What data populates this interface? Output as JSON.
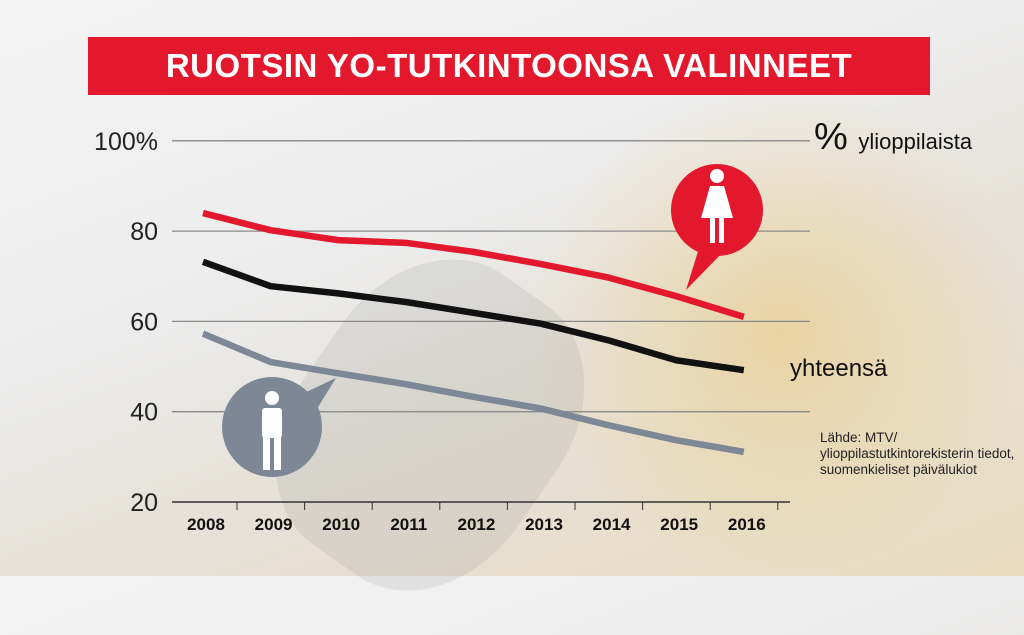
{
  "title": "RUOTSIN YO-TUTKINTOONSA VALINNEET",
  "unit_symbol": "%",
  "unit_label": "ylioppilaista",
  "total_label": "yhteensä",
  "source": "Lähde: MTV/ ylioppilastutkintorekisterin tiedot, suomenkieliset päivälukiot",
  "chart_data": {
    "type": "line",
    "title": "RUOTSIN YO-TUTKINTOONSA VALINNEET",
    "ylabel": "% ylioppilaista",
    "ylim": [
      20,
      100
    ],
    "y_ticks": [
      "20",
      "40",
      "60",
      "80",
      "100%"
    ],
    "y_tick_values": [
      20,
      40,
      60,
      80,
      100
    ],
    "grid": true,
    "x": [
      "2008",
      "2009",
      "2010",
      "2011",
      "2012",
      "2013",
      "2014",
      "2015",
      "2016"
    ],
    "series": [
      {
        "key": "female",
        "icon": "female-icon",
        "color": "#e3182d",
        "values": [
          84.0,
          80.2,
          78.0,
          77.4,
          75.4,
          72.7,
          69.7,
          65.6,
          61.0
        ]
      },
      {
        "name": "yhteensä",
        "color": "#111111",
        "values": [
          73.2,
          67.8,
          66.2,
          64.3,
          61.9,
          59.5,
          55.8,
          51.4,
          49.2
        ]
      },
      {
        "key": "male",
        "icon": "male-icon",
        "color": "#7d8796",
        "values": [
          57.3,
          51.0,
          48.5,
          46.1,
          43.3,
          40.7,
          37.0,
          33.7,
          31.1
        ]
      }
    ]
  }
}
